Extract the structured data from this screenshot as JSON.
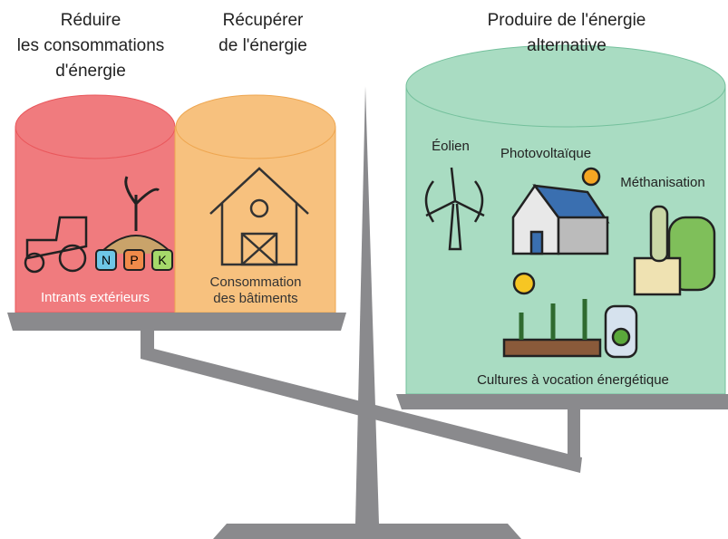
{
  "columns": [
    {
      "heading": [
        "Réduire",
        "les consommations",
        "d'énergie"
      ],
      "label": [
        "Intrants extérieurs"
      ]
    },
    {
      "heading": [
        "Récupérer",
        "de l'énergie"
      ],
      "label": [
        "Consommation",
        "des bâtiments"
      ]
    },
    {
      "heading": [
        "Produire de l'énergie",
        "alternative"
      ],
      "label": [
        "Cultures à vocation énergétique"
      ]
    }
  ],
  "icons": {
    "wind": "Éolien",
    "solar": "Photovoltaïque",
    "methane": "Méthanisation"
  },
  "npk": [
    "N",
    "P",
    "K"
  ]
}
